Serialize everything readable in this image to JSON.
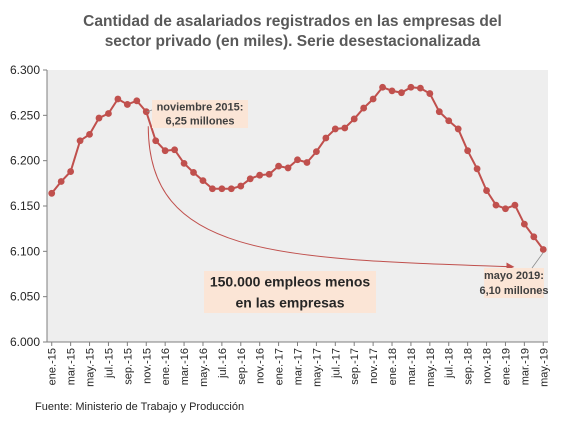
{
  "title_line1": "Cantidad de asalariados registrados en las empresas del",
  "title_line2": "sector privado (en miles). Serie desestacionalizada",
  "source": "Fuente: Ministerio de Trabajo y Producción",
  "colors": {
    "line": "#c0504d",
    "marker": "#c0504d",
    "plot_bg": "#eeeeee",
    "callout_bg": "#fbe5d6",
    "arrow": "#c0504d"
  },
  "annotations": {
    "nov2015_line1": "noviembre 2015:",
    "nov2015_line2": "6,25 millones",
    "may2019_line1": "mayo 2019:",
    "may2019_line2": "6,10 millones",
    "summary_line1": "150.000 empleos menos",
    "summary_line2": "en las empresas"
  },
  "chart_data": {
    "type": "line",
    "title": "Cantidad de asalariados registrados en las empresas del sector privado (en miles). Serie desestacionalizada",
    "ylim": [
      6000,
      6300
    ],
    "yticks": [
      "6.000",
      "6.050",
      "6.100",
      "6.150",
      "6.200",
      "6.250",
      "6.300"
    ],
    "ytick_values": [
      6000,
      6050,
      6100,
      6150,
      6200,
      6250,
      6300
    ],
    "xtick_labels": [
      "ene.-15",
      "mar.-15",
      "may.-15",
      "jul.-15",
      "sep.-15",
      "nov.-15",
      "ene.-16",
      "mar.-16",
      "may.-16",
      "jul.-16",
      "sep.-16",
      "nov.-16",
      "ene.-17",
      "mar.-17",
      "may.-17",
      "jul.-17",
      "sep.-17",
      "nov.-17",
      "ene.-18",
      "mar.-18",
      "may.-18",
      "jul.-18",
      "sep.-18",
      "nov.-18",
      "ene.-19",
      "mar.-19",
      "may.-19"
    ],
    "grid": false,
    "legend": "none",
    "series": [
      {
        "values": [
          6164,
          6177,
          6188,
          6222,
          6229,
          6247,
          6252,
          6268,
          6262,
          6266,
          6254,
          6222,
          6211,
          6212,
          6197,
          6187,
          6178,
          6169,
          6169,
          6169,
          6172,
          6180,
          6184,
          6185,
          6194,
          6192,
          6201,
          6198,
          6210,
          6225,
          6235,
          6236,
          6246,
          6258,
          6268,
          6281,
          6277,
          6275,
          6281,
          6280,
          6274,
          6254,
          6244,
          6235,
          6211,
          6191,
          6167,
          6151,
          6147,
          6151,
          6130,
          6116,
          6102
        ]
      }
    ]
  }
}
